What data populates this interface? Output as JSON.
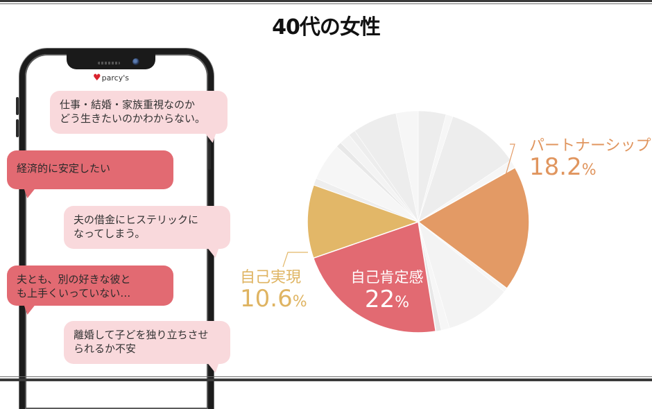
{
  "title": "40代の女性",
  "phone": {
    "logo_text": "parcy's",
    "logo_icon": "heart-icon"
  },
  "bubbles": [
    {
      "style": "light",
      "text": "仕事・結婚・家族重視なのか\nどう生きたいのかわからない。"
    },
    {
      "style": "dark",
      "text": "経済的に安定したい"
    },
    {
      "style": "light",
      "text": "夫の借金にヒステリックに\nなってしまう。"
    },
    {
      "style": "dark",
      "text": "夫とも、別の好きな彼と\nも上手くいっていない…"
    },
    {
      "style": "light",
      "text": "離婚して子どを独り立ちさせ\nられるか不安"
    }
  ],
  "labels": {
    "partnership": {
      "name": "パートナーシップ",
      "value": "18.2",
      "unit": "%"
    },
    "self_realization": {
      "name": "自己実現",
      "value": "10.6",
      "unit": "%"
    },
    "self_affirmation": {
      "name": "自己肯定感",
      "value": "22",
      "unit": "%"
    }
  },
  "colors": {
    "partnership": "#e39a65",
    "self_affirmation": "#e26a72",
    "self_realization": "#e2b768",
    "other_a": "#ededed",
    "other_b": "#f6f6f6",
    "bubble_light": "#f9d9dc",
    "bubble_dark": "#e26a72"
  },
  "chart_data": {
    "type": "pie",
    "title": "40代の女性",
    "start_angle_deg": 0,
    "direction": "clockwise",
    "slices": [
      {
        "label": "その他",
        "value": 4.0,
        "color": "#ededed"
      },
      {
        "label": "その他",
        "value": 1.0,
        "color": "#f6f6f6"
      },
      {
        "label": "その他",
        "value": 10.5,
        "color": "#ededed"
      },
      {
        "label": "その他",
        "value": 1.2,
        "color": "#f6f6f6"
      },
      {
        "label": "パートナーシップ",
        "value": 18.2,
        "color": "#e39a65",
        "highlight": true
      },
      {
        "label": "その他",
        "value": 0.6,
        "color": "#f6f6f6"
      },
      {
        "label": "その他",
        "value": 9.5,
        "color": "#f3f3f3"
      },
      {
        "label": "その他",
        "value": 1.2,
        "color": "#f6f6f6"
      },
      {
        "label": "その他",
        "value": 0.8,
        "color": "#e8e8e8"
      },
      {
        "label": "自己肯定感",
        "value": 22.0,
        "color": "#e26a72",
        "highlight": true
      },
      {
        "label": "自己実現",
        "value": 10.6,
        "color": "#e2b768",
        "highlight": true
      },
      {
        "label": "その他",
        "value": 1.0,
        "color": "#eeeeee"
      },
      {
        "label": "その他",
        "value": 5.4,
        "color": "#f6f6f6"
      },
      {
        "label": "その他",
        "value": 0.8,
        "color": "#e8e8e8"
      },
      {
        "label": "その他",
        "value": 1.6,
        "color": "#f3f3f3"
      },
      {
        "label": "その他",
        "value": 1.0,
        "color": "#ededed"
      },
      {
        "label": "その他",
        "value": 6.4,
        "color": "#ededed"
      },
      {
        "label": "その他",
        "value": 3.2,
        "color": "#f6f6f6"
      }
    ],
    "labeled": [
      {
        "label": "パートナーシップ",
        "value": 18.2
      },
      {
        "label": "自己肯定感",
        "value": 22
      },
      {
        "label": "自己実現",
        "value": 10.6
      }
    ]
  }
}
